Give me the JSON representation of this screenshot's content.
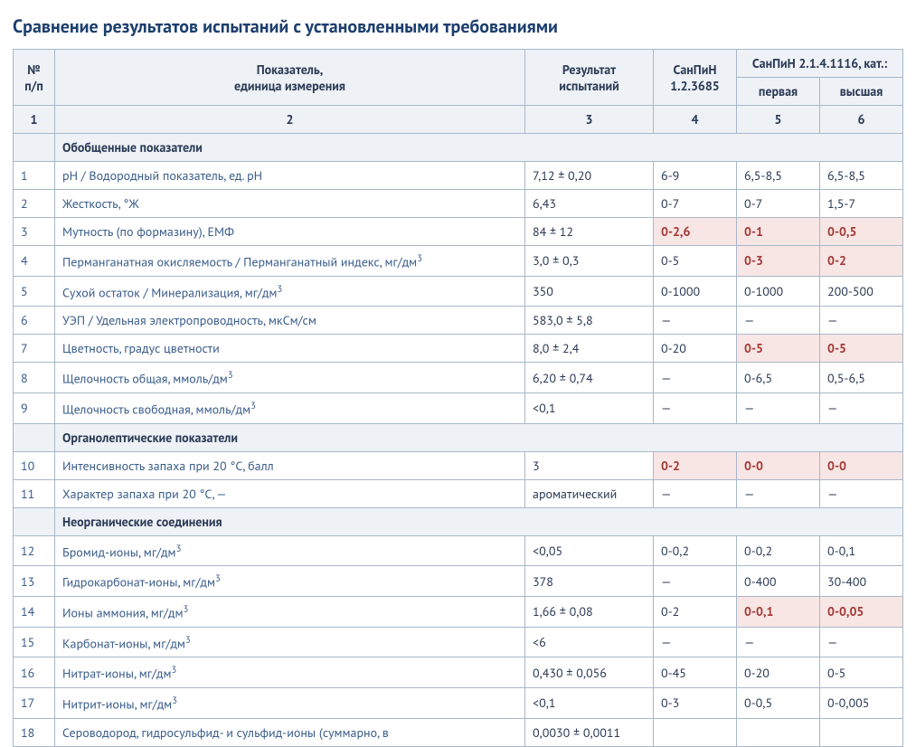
{
  "title": "Сравнение результатов испытаний с установленными требованиями",
  "colors": {
    "heading": "#1d3f6e",
    "text": "#2b3a55",
    "link": "#3a5c8a",
    "header_bg": "#eef2f6",
    "border": "#a8b7c9",
    "violation_bg": "#f8e6e5",
    "violation_text": "#a43a36"
  },
  "header": {
    "col_num": "№\nп/п",
    "col_name": "Показатель,\nединица измерения",
    "col_result": "Результат\nиспытаний",
    "col_san1": "СанПиН\n1.2.3685",
    "col_san2_group": "СанПиН 2.1.4.1116, кат.:",
    "col_san2_a": "первая",
    "col_san2_b": "высшая"
  },
  "numrow": [
    "1",
    "2",
    "3",
    "4",
    "5",
    "6"
  ],
  "sections": [
    {
      "title": "Обобщенные показатели",
      "rows": [
        {
          "n": "1",
          "name": "pH / Водородный показатель, ед. pH",
          "res": "7,12 ± 0,20",
          "s1": "6-9",
          "s2": "6,5-8,5",
          "s3": "6,5-8,5",
          "v": [
            false,
            false,
            false
          ]
        },
        {
          "n": "2",
          "name": "Жесткость, °Ж",
          "res": "6,43",
          "s1": "0-7",
          "s2": "0-7",
          "s3": "1,5-7",
          "v": [
            false,
            false,
            false
          ]
        },
        {
          "n": "3",
          "name": "Мутность (по формазину), ЕМФ",
          "res": "84 ± 12",
          "s1": "0-2,6",
          "s2": "0-1",
          "s3": "0-0,5",
          "v": [
            true,
            true,
            true
          ]
        },
        {
          "n": "4",
          "name": "Перманганатная окисляемость / Перманганатный индекс, мг/дм³",
          "res": "3,0 ± 0,3",
          "s1": "0-5",
          "s2": "0-3",
          "s3": "0-2",
          "v": [
            false,
            true,
            true
          ]
        },
        {
          "n": "5",
          "name": "Сухой остаток / Минерализация, мг/дм³",
          "res": "350",
          "s1": "0-1000",
          "s2": "0-1000",
          "s3": "200-500",
          "v": [
            false,
            false,
            false
          ]
        },
        {
          "n": "6",
          "name": "УЭП / Удельная электропроводность, мкСм/см",
          "res": "583,0 ± 5,8",
          "s1": "—",
          "s2": "—",
          "s3": "—",
          "v": [
            false,
            false,
            false
          ]
        },
        {
          "n": "7",
          "name": "Цветность, градус цветности",
          "res": "8,0 ± 2,4",
          "s1": "0-20",
          "s2": "0-5",
          "s3": "0-5",
          "v": [
            false,
            true,
            true
          ]
        },
        {
          "n": "8",
          "name": "Щелочность общая, ммоль/дм³",
          "res": "6,20 ± 0,74",
          "s1": "—",
          "s2": "0-6,5",
          "s3": "0,5-6,5",
          "v": [
            false,
            false,
            false
          ]
        },
        {
          "n": "9",
          "name": "Щелочность свободная, ммоль/дм³",
          "res": "<0,1",
          "s1": "—",
          "s2": "—",
          "s3": "—",
          "v": [
            false,
            false,
            false
          ]
        }
      ]
    },
    {
      "title": "Органолептические показатели",
      "rows": [
        {
          "n": "10",
          "name": "Интенсивность запаха при 20 °С, балл",
          "res": "3",
          "s1": "0-2",
          "s2": "0-0",
          "s3": "0-0",
          "v": [
            true,
            true,
            true
          ]
        },
        {
          "n": "11",
          "name": "Характер запаха при 20 °С, —",
          "res": "ароматический",
          "s1": "—",
          "s2": "—",
          "s3": "—",
          "v": [
            false,
            false,
            false
          ]
        }
      ]
    },
    {
      "title": "Неорганические соединения",
      "rows": [
        {
          "n": "12",
          "name": "Бромид-ионы, мг/дм³",
          "res": "<0,05",
          "s1": "0-0,2",
          "s2": "0-0,2",
          "s3": "0-0,1",
          "v": [
            false,
            false,
            false
          ]
        },
        {
          "n": "13",
          "name": "Гидрокарбонат-ионы, мг/дм³",
          "res": "378",
          "s1": "—",
          "s2": "0-400",
          "s3": "30-400",
          "v": [
            false,
            false,
            false
          ]
        },
        {
          "n": "14",
          "name": "Ионы аммония, мг/дм³",
          "res": "1,66 ± 0,08",
          "s1": "0-2",
          "s2": "0-0,1",
          "s3": "0-0,05",
          "v": [
            false,
            true,
            true
          ]
        },
        {
          "n": "15",
          "name": "Карбонат-ионы, мг/дм³",
          "res": "<6",
          "s1": "—",
          "s2": "—",
          "s3": "—",
          "v": [
            false,
            false,
            false
          ]
        },
        {
          "n": "16",
          "name": "Нитрат-ионы, мг/дм³",
          "res": "0,430 ± 0,056",
          "s1": "0-45",
          "s2": "0-20",
          "s3": "0-5",
          "v": [
            false,
            false,
            false
          ]
        },
        {
          "n": "17",
          "name": "Нитрит-ионы, мг/дм³",
          "res": "<0,1",
          "s1": "0-3",
          "s2": "0-0,5",
          "s3": "0-0,005",
          "v": [
            false,
            false,
            false
          ]
        },
        {
          "n": "18",
          "name": "Сероводород, гидросульфид- и сульфид-ионы (суммарно, в",
          "res": "0,0030 ± 0,0011",
          "s1": "",
          "s2": "",
          "s3": "",
          "v": [
            false,
            false,
            false
          ]
        }
      ]
    }
  ]
}
